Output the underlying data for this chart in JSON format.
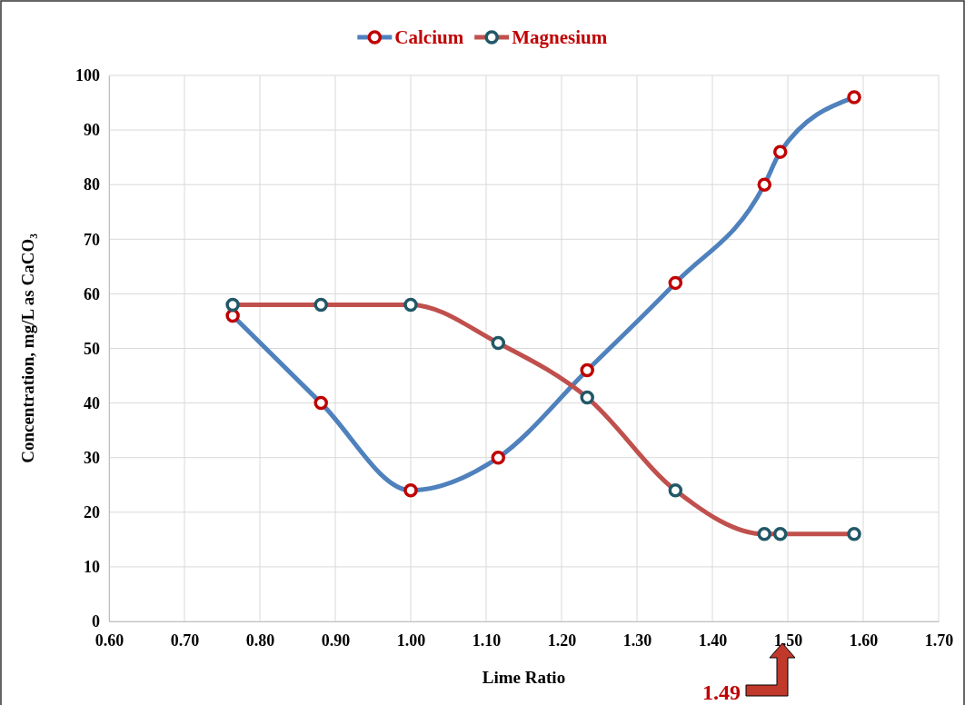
{
  "chart_data": {
    "type": "line",
    "xlabel": "Lime Ratio",
    "ylabel": "Concentration, mg/L as CaCO₃",
    "x": [
      0.764,
      0.881,
      1.0,
      1.116,
      1.234,
      1.351,
      1.469,
      1.49,
      1.588
    ],
    "series": [
      {
        "name": "Calcium",
        "color": "#4f81bd",
        "colors": [
          "#c00000",
          "#c00000",
          "#c00000",
          "#c00000",
          "#c00000",
          "#c00000",
          "#c00000",
          "#c00000",
          "#c00000"
        ],
        "values": [
          56,
          40,
          24,
          30,
          46,
          62,
          80,
          86,
          96
        ]
      },
      {
        "name": "Magnesium",
        "color": "#c0504d",
        "colors": [
          "#215868",
          "#215868",
          "#215868",
          "#215868",
          "#215868",
          "#215868",
          "#215868",
          "#215868",
          "#215868"
        ],
        "values": [
          58,
          58,
          58,
          51,
          41,
          24,
          16,
          16,
          16
        ]
      }
    ],
    "xlim": [
      0.6,
      1.7
    ],
    "xticks": [
      {
        "value": 0.6,
        "label": "0.60"
      },
      {
        "value": 0.7,
        "label": "0.70"
      },
      {
        "value": 0.8,
        "label": "0.80"
      },
      {
        "value": 0.9,
        "label": "0.90"
      },
      {
        "value": 1.0,
        "label": "1.00"
      },
      {
        "value": 1.1,
        "label": "1.10"
      },
      {
        "value": 1.2,
        "label": "1.20"
      },
      {
        "value": 1.3,
        "label": "1.30"
      },
      {
        "value": 1.4,
        "label": "1.40"
      },
      {
        "value": 1.5,
        "label": "1.50"
      },
      {
        "value": 1.6,
        "label": "1.60"
      },
      {
        "value": 1.7,
        "label": "1.70"
      }
    ],
    "ylim": [
      0,
      100
    ],
    "yticks": [
      0,
      10,
      20,
      30,
      40,
      50,
      60,
      70,
      80,
      90,
      100
    ],
    "grid": true,
    "legend": "top",
    "marker": "circle",
    "line_style": "solid",
    "annotations": [
      "1.49"
    ]
  }
}
